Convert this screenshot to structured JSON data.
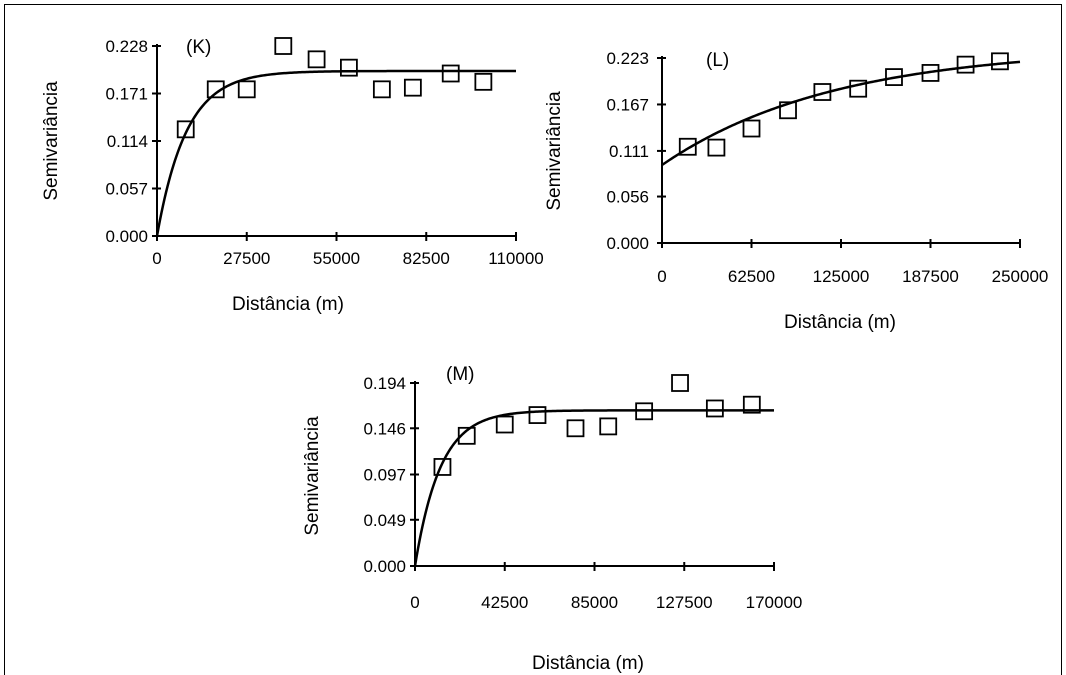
{
  "chart_data": [
    {
      "type": "scatter",
      "panel_label": "(K)",
      "xlabel": "Distância (m)",
      "ylabel": "Semivariância",
      "xlim": [
        0,
        110000
      ],
      "ylim": [
        0,
        0.228
      ],
      "x_ticks": [
        0,
        27500,
        55000,
        82500,
        110000
      ],
      "x_tick_labels": [
        "0",
        "27500",
        "55000",
        "82500",
        "110000"
      ],
      "y_ticks": [
        0,
        0.057,
        0.114,
        0.171,
        0.228
      ],
      "y_tick_labels": [
        "0.000",
        "0.057",
        "0.114",
        "0.171",
        "0.228"
      ],
      "points": [
        {
          "x": 8800,
          "y": 0.128
        },
        {
          "x": 18000,
          "y": 0.176
        },
        {
          "x": 27500,
          "y": 0.176
        },
        {
          "x": 38700,
          "y": 0.228
        },
        {
          "x": 48900,
          "y": 0.212
        },
        {
          "x": 58800,
          "y": 0.202
        },
        {
          "x": 68900,
          "y": 0.176
        },
        {
          "x": 78400,
          "y": 0.178
        },
        {
          "x": 90000,
          "y": 0.195
        },
        {
          "x": 100000,
          "y": 0.185
        }
      ],
      "model": {
        "curve": "exponential",
        "nugget": 0,
        "sill": 0.198,
        "range_param": 9000
      }
    },
    {
      "type": "scatter",
      "panel_label": "(L)",
      "xlabel": "Distância (m)",
      "ylabel": "Semivariância",
      "xlim": [
        0,
        250000
      ],
      "ylim": [
        0,
        0.223
      ],
      "x_ticks": [
        0,
        62500,
        125000,
        187500,
        250000
      ],
      "x_tick_labels": [
        "0",
        "62500",
        "125000",
        "187500",
        "250000"
      ],
      "y_ticks": [
        0,
        0.056,
        0.111,
        0.167,
        0.223
      ],
      "y_tick_labels": [
        "0.000",
        "0.056",
        "0.111",
        "0.167",
        "0.223"
      ],
      "points": [
        {
          "x": 18000,
          "y": 0.116
        },
        {
          "x": 38000,
          "y": 0.115
        },
        {
          "x": 62500,
          "y": 0.138
        },
        {
          "x": 88000,
          "y": 0.16
        },
        {
          "x": 112000,
          "y": 0.182
        },
        {
          "x": 137000,
          "y": 0.186
        },
        {
          "x": 162000,
          "y": 0.2
        },
        {
          "x": 187500,
          "y": 0.205
        },
        {
          "x": 212000,
          "y": 0.215
        },
        {
          "x": 236000,
          "y": 0.219
        }
      ],
      "model": {
        "curve": "exponential",
        "nugget": 0.094,
        "sill": 0.236,
        "range_param": 120000
      }
    },
    {
      "type": "scatter",
      "panel_label": "(M)",
      "xlabel": "Distância (m)",
      "ylabel": "Semivariância",
      "xlim": [
        0,
        170000
      ],
      "ylim": [
        0,
        0.194
      ],
      "x_ticks": [
        0,
        42500,
        85000,
        127500,
        170000
      ],
      "x_tick_labels": [
        "0",
        "42500",
        "85000",
        "127500",
        "170000"
      ],
      "y_ticks": [
        0,
        0.049,
        0.097,
        0.146,
        0.194
      ],
      "y_tick_labels": [
        "0.000",
        "0.049",
        "0.097",
        "0.146",
        "0.194"
      ],
      "points": [
        {
          "x": 13000,
          "y": 0.105
        },
        {
          "x": 24500,
          "y": 0.138
        },
        {
          "x": 42500,
          "y": 0.15
        },
        {
          "x": 58000,
          "y": 0.16
        },
        {
          "x": 76000,
          "y": 0.146
        },
        {
          "x": 91500,
          "y": 0.148
        },
        {
          "x": 108500,
          "y": 0.164
        },
        {
          "x": 125500,
          "y": 0.194
        },
        {
          "x": 142000,
          "y": 0.167
        },
        {
          "x": 159500,
          "y": 0.171
        }
      ],
      "model": {
        "curve": "exponential",
        "nugget": 0,
        "sill": 0.165,
        "range_param": 12000
      }
    }
  ]
}
